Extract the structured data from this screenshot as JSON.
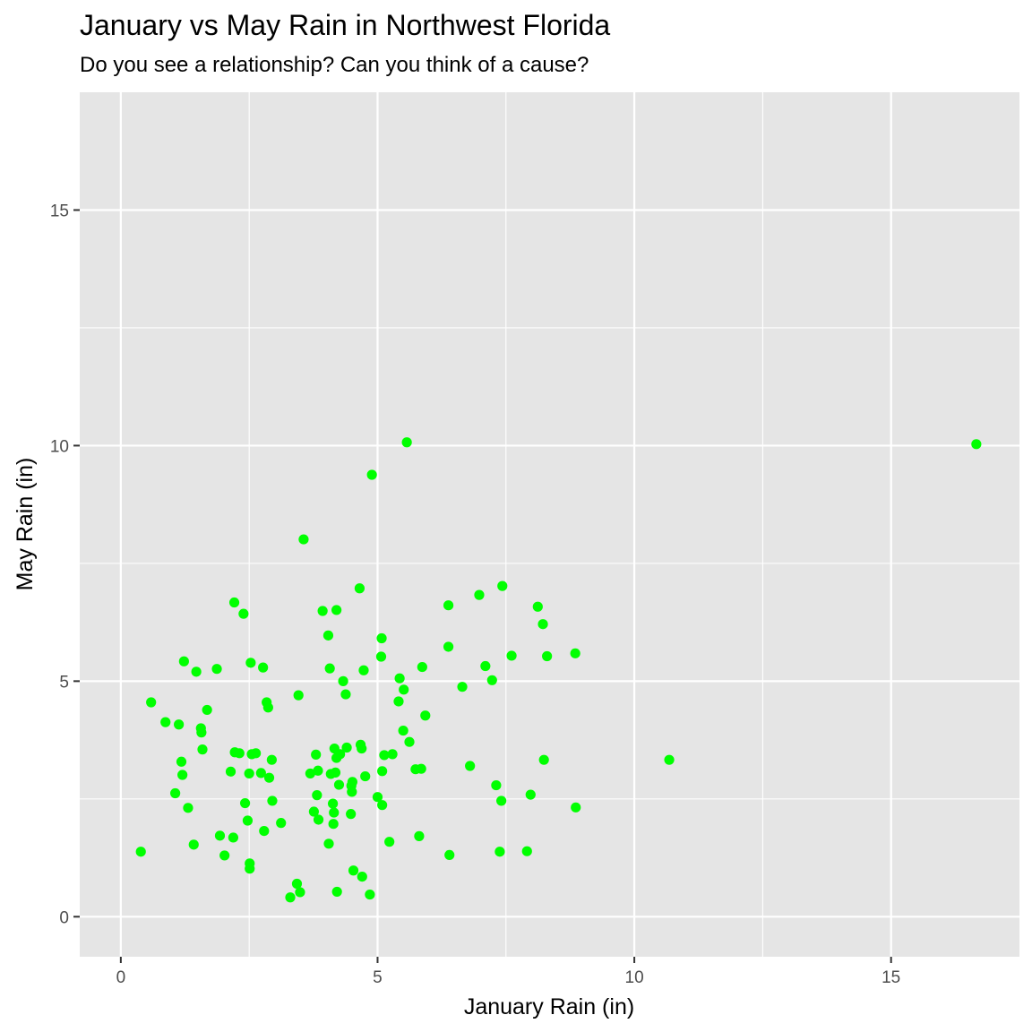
{
  "chart_data": {
    "type": "scatter",
    "title": "January vs May Rain in Northwest Florida",
    "subtitle": "Do you see a relationship? Can you think of a cause?",
    "xlabel": "January Rain (in)",
    "ylabel": "May Rain (in)",
    "xlim": [
      -0.8,
      17.5
    ],
    "ylim": [
      -0.85,
      17.5
    ],
    "x_ticks": [
      0,
      5,
      10,
      15
    ],
    "y_ticks": [
      0,
      5,
      10,
      15
    ],
    "x_tick_labels": [
      "0",
      "5",
      "10",
      "15"
    ],
    "y_tick_labels": [
      "0",
      "5",
      "10",
      "15"
    ],
    "grid": true,
    "legend": "none",
    "colors": {
      "panel": "#e5e5e5",
      "grid": "#ffffff",
      "point": "#00ff00",
      "tick": "#4d4d4d",
      "text": "#000000"
    },
    "points": [
      [
        0.39,
        1.38
      ],
      [
        0.59,
        4.55
      ],
      [
        0.87,
        4.13
      ],
      [
        1.06,
        2.62
      ],
      [
        1.13,
        4.08
      ],
      [
        1.18,
        3.29
      ],
      [
        1.2,
        3.01
      ],
      [
        1.23,
        5.42
      ],
      [
        1.31,
        2.31
      ],
      [
        1.42,
        1.53
      ],
      [
        1.47,
        5.2
      ],
      [
        1.56,
        4.0
      ],
      [
        1.57,
        3.91
      ],
      [
        1.59,
        3.55
      ],
      [
        1.68,
        4.39
      ],
      [
        1.87,
        5.26
      ],
      [
        1.93,
        1.72
      ],
      [
        2.02,
        1.3
      ],
      [
        2.14,
        3.08
      ],
      [
        2.19,
        1.68
      ],
      [
        2.21,
        6.67
      ],
      [
        2.22,
        3.49
      ],
      [
        2.31,
        3.47
      ],
      [
        2.39,
        6.43
      ],
      [
        2.42,
        2.41
      ],
      [
        2.47,
        2.04
      ],
      [
        2.5,
        3.04
      ],
      [
        2.51,
        1.13
      ],
      [
        2.51,
        1.02
      ],
      [
        2.53,
        5.39
      ],
      [
        2.55,
        3.45
      ],
      [
        2.63,
        3.47
      ],
      [
        2.73,
        3.05
      ],
      [
        2.77,
        5.29
      ],
      [
        2.79,
        1.82
      ],
      [
        2.84,
        4.55
      ],
      [
        2.87,
        4.44
      ],
      [
        2.89,
        2.95
      ],
      [
        2.94,
        3.33
      ],
      [
        2.95,
        2.46
      ],
      [
        3.12,
        1.99
      ],
      [
        3.3,
        0.41
      ],
      [
        3.43,
        0.7
      ],
      [
        3.46,
        4.7
      ],
      [
        3.49,
        0.52
      ],
      [
        3.56,
        8.01
      ],
      [
        3.69,
        3.04
      ],
      [
        3.76,
        2.23
      ],
      [
        3.8,
        3.44
      ],
      [
        3.82,
        2.58
      ],
      [
        3.84,
        3.1
      ],
      [
        3.85,
        2.06
      ],
      [
        3.93,
        6.49
      ],
      [
        4.04,
        5.97
      ],
      [
        4.05,
        1.55
      ],
      [
        4.07,
        5.27
      ],
      [
        4.09,
        3.03
      ],
      [
        4.13,
        2.4
      ],
      [
        4.14,
        1.97
      ],
      [
        4.15,
        2.21
      ],
      [
        4.16,
        3.57
      ],
      [
        4.18,
        3.06
      ],
      [
        4.2,
        6.51
      ],
      [
        4.2,
        3.37
      ],
      [
        4.21,
        0.53
      ],
      [
        4.25,
        2.8
      ],
      [
        4.27,
        3.45
      ],
      [
        4.33,
        5.0
      ],
      [
        4.38,
        4.72
      ],
      [
        4.4,
        3.59
      ],
      [
        4.48,
        2.18
      ],
      [
        4.49,
        2.78
      ],
      [
        4.5,
        2.65
      ],
      [
        4.51,
        2.86
      ],
      [
        4.53,
        0.98
      ],
      [
        4.65,
        6.97
      ],
      [
        4.67,
        3.65
      ],
      [
        4.69,
        3.57
      ],
      [
        4.7,
        0.85
      ],
      [
        4.73,
        5.23
      ],
      [
        4.76,
        2.98
      ],
      [
        4.85,
        0.47
      ],
      [
        4.89,
        9.38
      ],
      [
        5.0,
        2.54
      ],
      [
        5.07,
        5.52
      ],
      [
        5.08,
        5.91
      ],
      [
        5.09,
        2.37
      ],
      [
        5.09,
        3.09
      ],
      [
        5.13,
        3.43
      ],
      [
        5.23,
        1.59
      ],
      [
        5.29,
        3.45
      ],
      [
        5.41,
        4.57
      ],
      [
        5.43,
        5.06
      ],
      [
        5.5,
        3.95
      ],
      [
        5.51,
        4.82
      ],
      [
        5.57,
        10.07
      ],
      [
        5.62,
        3.71
      ],
      [
        5.74,
        3.13
      ],
      [
        5.81,
        1.71
      ],
      [
        5.85,
        3.14
      ],
      [
        5.87,
        5.3
      ],
      [
        5.93,
        4.27
      ],
      [
        6.38,
        6.61
      ],
      [
        6.38,
        5.73
      ],
      [
        6.4,
        1.31
      ],
      [
        6.65,
        4.88
      ],
      [
        6.8,
        3.2
      ],
      [
        6.98,
        6.83
      ],
      [
        7.1,
        5.32
      ],
      [
        7.23,
        5.02
      ],
      [
        7.31,
        2.79
      ],
      [
        7.38,
        1.38
      ],
      [
        7.41,
        2.46
      ],
      [
        7.43,
        7.02
      ],
      [
        7.61,
        5.54
      ],
      [
        7.91,
        1.39
      ],
      [
        7.98,
        2.59
      ],
      [
        8.12,
        6.58
      ],
      [
        8.22,
        6.21
      ],
      [
        8.24,
        3.33
      ],
      [
        8.3,
        5.53
      ],
      [
        8.85,
        5.59
      ],
      [
        8.86,
        2.32
      ],
      [
        10.68,
        3.33
      ],
      [
        16.66,
        10.03
      ]
    ]
  }
}
